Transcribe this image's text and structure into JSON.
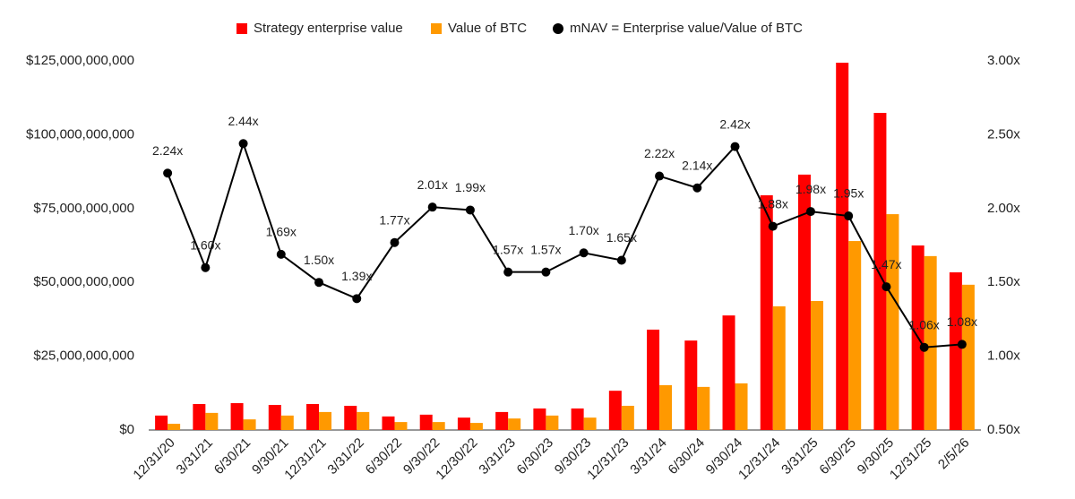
{
  "chart_data": {
    "type": "bar",
    "categories": [
      "12/31/20",
      "3/31/21",
      "6/30/21",
      "9/30/21",
      "12/31/21",
      "3/31/22",
      "6/30/22",
      "9/30/22",
      "12/30/22",
      "3/31/23",
      "6/30/23",
      "9/30/23",
      "12/31/23",
      "3/31/24",
      "6/30/24",
      "9/30/24",
      "12/31/24",
      "3/31/25",
      "6/30/25",
      "9/30/25",
      "12/31/25",
      "2/5/26"
    ],
    "series": [
      {
        "name": "Strategy enterprise value",
        "type": "bar",
        "color": "#ff0000",
        "values": [
          4900000000,
          8800000000,
          9100000000,
          8500000000,
          8800000000,
          8200000000,
          4600000000,
          5200000000,
          4200000000,
          6100000000,
          7300000000,
          7300000000,
          13300000000,
          34000000000,
          30300000000,
          38800000000,
          79500000000,
          86500000000,
          124400000000,
          107400000000,
          62500000000,
          53400000000
        ]
      },
      {
        "name": "Value of BTC",
        "type": "bar",
        "color": "#ff9900",
        "values": [
          2100000000,
          5800000000,
          3600000000,
          4900000000,
          6100000000,
          6100000000,
          2700000000,
          2700000000,
          2400000000,
          3900000000,
          4900000000,
          4200000000,
          8200000000,
          15200000000,
          14600000000,
          15800000000,
          41900000000,
          43700000000,
          64000000000,
          73100000000,
          58900000000,
          49200000000
        ]
      },
      {
        "name": "mNAV = Enterprise value/Value of BTC",
        "type": "line",
        "color": "#000000",
        "axis": "y2",
        "values": [
          2.24,
          1.6,
          2.44,
          1.69,
          1.5,
          1.39,
          1.77,
          2.01,
          1.99,
          1.57,
          1.57,
          1.7,
          1.65,
          2.22,
          2.14,
          2.42,
          1.88,
          1.98,
          1.95,
          1.47,
          1.06,
          1.08
        ],
        "value_labels": [
          "2.24x",
          "1.60x",
          "2.44x",
          "1.69x",
          "1.50x",
          "1.39x",
          "1.77x",
          "2.01x",
          "1.99x",
          "1.57x",
          "1.57x",
          "1.70x",
          "1.65x",
          "2.22x",
          "2.14x",
          "2.42x",
          "1.88x",
          "1.98x",
          "1.95x",
          "1.47x",
          "1.06x",
          "1.08x"
        ]
      }
    ],
    "ylim": [
      0,
      125000000000
    ],
    "yticks": [
      {
        "value": 0,
        "label": "$0"
      },
      {
        "value": 25000000000,
        "label": "$25,000,000,000"
      },
      {
        "value": 50000000000,
        "label": "$50,000,000,000"
      },
      {
        "value": 75000000000,
        "label": "$75,000,000,000"
      },
      {
        "value": 100000000000,
        "label": "$100,000,000,000"
      },
      {
        "value": 125000000000,
        "label": "$125,000,000,000"
      }
    ],
    "y2lim": [
      0.5,
      3.0
    ],
    "y2ticks": [
      {
        "value": 0.5,
        "label": "0.50x"
      },
      {
        "value": 1.0,
        "label": "1.00x"
      },
      {
        "value": 1.5,
        "label": "1.50x"
      },
      {
        "value": 2.0,
        "label": "2.00x"
      },
      {
        "value": 2.5,
        "label": "2.50x"
      },
      {
        "value": 3.0,
        "label": "3.00x"
      }
    ],
    "grid": false,
    "legend": "top"
  }
}
